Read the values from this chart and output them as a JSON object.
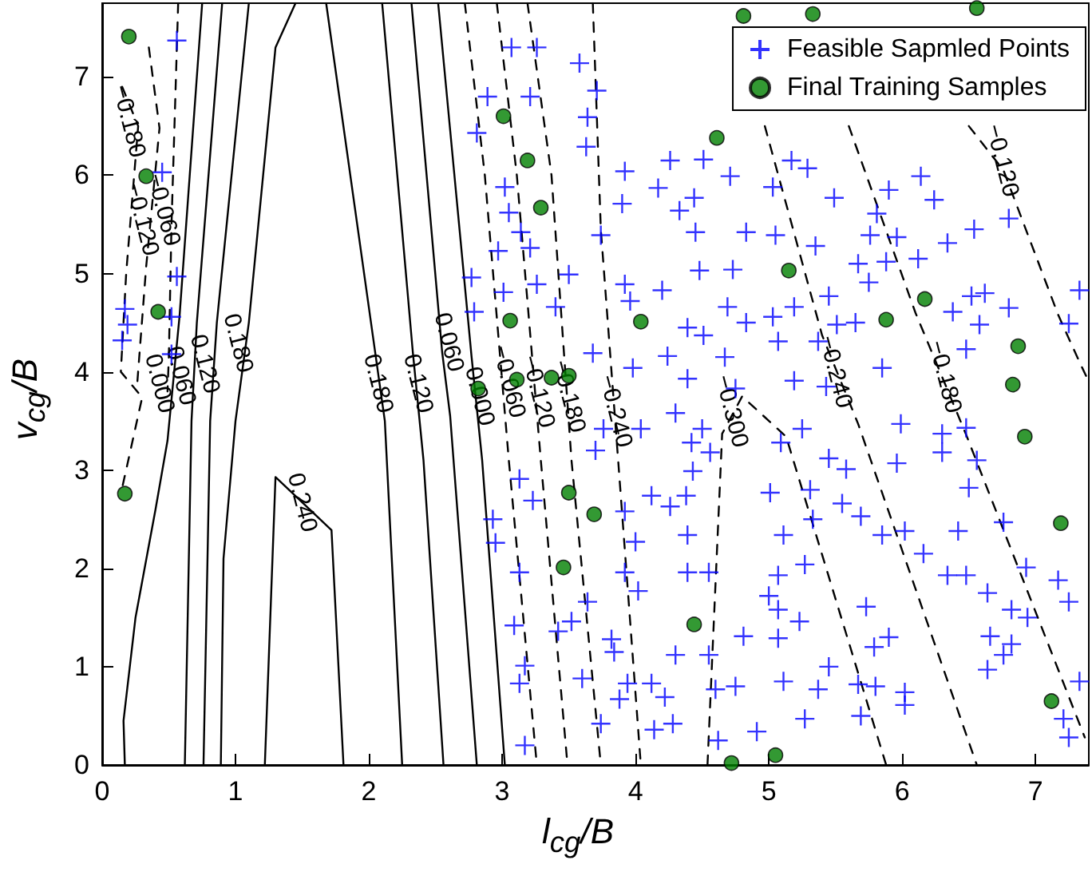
{
  "chart_data": {
    "type": "scatter",
    "xlabel": "l$_{cg}$/B",
    "ylabel": "v$_{cg}$/B",
    "xlim": [
      0,
      7.4
    ],
    "ylim": [
      0,
      7.75
    ],
    "xticks": [
      0,
      1,
      2,
      3,
      4,
      5,
      6,
      7
    ],
    "yticks": [
      0,
      1,
      2,
      3,
      4,
      5,
      6,
      7
    ],
    "grid": false,
    "legend": "top right",
    "series": [
      {
        "type": "line",
        "color": "#000000",
        "line_style": "solid",
        "marker": "none",
        "x": [
          0.17,
          0.16,
          0.25,
          0.4,
          0.49,
          0.58,
          0.75
        ],
        "values": [
          0,
          0.45,
          1.5,
          2.6,
          3.3,
          4.56,
          7.75
        ]
      },
      {
        "type": "line",
        "color": "#000000",
        "line_style": "solid",
        "marker": "none",
        "x": [
          0.62,
          0.67,
          0.71,
          0.9
        ],
        "values": [
          0,
          3.5,
          4.5,
          7.75
        ]
      },
      {
        "type": "line",
        "color": "#000000",
        "line_style": "solid",
        "marker": "none",
        "x": [
          0.76,
          0.81,
          0.86,
          1.1
        ],
        "values": [
          0,
          3.5,
          4.5,
          7.75
        ]
      },
      {
        "type": "line",
        "color": "#000000",
        "line_style": "solid",
        "marker": "none",
        "x": [
          0.89,
          0.91,
          1.0,
          1.1,
          1.3,
          1.45
        ],
        "values": [
          0,
          2.1,
          3.5,
          4.5,
          7.3,
          7.75
        ]
      },
      {
        "type": "line",
        "color": "#000000",
        "line_style": "solid",
        "marker": "none",
        "x": [
          1.22,
          1.3,
          1.72,
          1.81
        ],
        "values": [
          0,
          2.93,
          2.39,
          0
        ]
      },
      {
        "type": "line",
        "color": "#000000",
        "line_style": "solid",
        "marker": "none",
        "x": [
          1.68,
          2.01,
          2.12,
          2.25
        ],
        "values": [
          7.75,
          4.56,
          3.5,
          0
        ]
      },
      {
        "type": "line",
        "color": "#000000",
        "line_style": "solid",
        "marker": "none",
        "x": [
          2.1,
          2.33,
          2.41,
          2.56
        ],
        "values": [
          7.75,
          4.2,
          3.1,
          0
        ]
      },
      {
        "type": "line",
        "color": "#000000",
        "line_style": "solid",
        "marker": "none",
        "x": [
          2.32,
          2.55,
          2.61,
          2.81
        ],
        "values": [
          7.75,
          4.2,
          3.55,
          0
        ]
      },
      {
        "type": "line",
        "color": "#000000",
        "line_style": "solid",
        "marker": "none",
        "x": [
          2.52,
          2.77,
          2.85,
          3.02
        ],
        "values": [
          7.75,
          4.16,
          3.1,
          0
        ]
      },
      {
        "type": "line",
        "color": "#000000",
        "line_style": "dashed",
        "marker": "none",
        "x": [
          0.57,
          0.52,
          0.5,
          0.49
        ],
        "values": [
          7.75,
          5.5,
          4.15,
          3.8
        ]
      },
      {
        "type": "line",
        "color": "#000000",
        "line_style": "dashed",
        "marker": "none",
        "x": [
          0.35,
          0.43,
          0.33,
          0.26
        ],
        "values": [
          7.3,
          6.48,
          5.07,
          3.83
        ]
      },
      {
        "type": "line",
        "color": "#000000",
        "line_style": "dashed",
        "marker": "none",
        "x": [
          0.15,
          0.27,
          0.18,
          0.14,
          0.3,
          0.15
        ],
        "values": [
          6.9,
          6.5,
          5.0,
          4.0,
          3.74,
          2.82
        ]
      },
      {
        "type": "line",
        "color": "#000000",
        "line_style": "dashed",
        "marker": "none",
        "x": [
          2.72,
          2.87,
          3.05,
          3.26
        ],
        "values": [
          7.75,
          6.0,
          3.1,
          0
        ]
      },
      {
        "type": "line",
        "color": "#000000",
        "line_style": "dashed",
        "marker": "none",
        "x": [
          2.96,
          3.11,
          3.29,
          3.49
        ],
        "values": [
          7.75,
          6.0,
          3.1,
          0
        ]
      },
      {
        "type": "line",
        "color": "#000000",
        "line_style": "dashed",
        "marker": "none",
        "x": [
          3.19,
          3.37,
          3.52,
          3.74
        ],
        "values": [
          7.75,
          6.0,
          3.1,
          0
        ]
      },
      {
        "type": "line",
        "color": "#000000",
        "line_style": "dashed",
        "marker": "none",
        "x": [
          3.68,
          3.74,
          3.87,
          4.04
        ],
        "values": [
          7.75,
          5.45,
          3.1,
          0
        ]
      },
      {
        "type": "line",
        "color": "#000000",
        "line_style": "dashed",
        "marker": "none",
        "x": [
          4.54,
          4.65,
          4.8,
          5.13,
          5.88
        ],
        "values": [
          0,
          3.37,
          3.75,
          3.34,
          0
        ]
      },
      {
        "type": "line",
        "color": "#000000",
        "line_style": "dashed",
        "marker": "none",
        "x": [
          4.97,
          5.4,
          5.67,
          6.56
        ],
        "values": [
          6.5,
          4.37,
          3.47,
          0
        ]
      },
      {
        "type": "line",
        "color": "#000000",
        "line_style": "dashed",
        "marker": "none",
        "x": [
          5.6,
          6.1,
          6.48,
          7.37
        ],
        "values": [
          6.5,
          4.6,
          3.36,
          0.28
        ]
      },
      {
        "type": "line",
        "color": "#000000",
        "line_style": "dashed",
        "marker": "none",
        "x": [
          6.5,
          6.76,
          7.17,
          7.33,
          7.4
        ],
        "values": [
          6.5,
          6.05,
          4.58,
          4.1,
          3.9
        ]
      },
      {
        "name": "Feasible Sapmled Points",
        "color": "#0000ff",
        "marker": "cross",
        "x": [
          0.56,
          0.45,
          0.56,
          0.17,
          0.19,
          0.15,
          0.52,
          0.52,
          3.07,
          3.26,
          3.58,
          2.89,
          3.21,
          3.71,
          3.64,
          2.81,
          3.63,
          4.26,
          4.51,
          3.92,
          3.02,
          4.17,
          4.71,
          4.44,
          3.9,
          3.05,
          4.33,
          3.14,
          3.74,
          4.45,
          4.83,
          2.97,
          3.21,
          2.77,
          3.5,
          4.48,
          4.73,
          3.01,
          3.26,
          3.92,
          4.2,
          2.79,
          3.4,
          3.96,
          4.69,
          4.39,
          4.83,
          3.68,
          4.24,
          4.51,
          4.67,
          3.98,
          4.39,
          4.75,
          5.05,
          5.17,
          5.29,
          5.03,
          5.49,
          5.35,
          5.9,
          6.14,
          6.24,
          5.81,
          6.54,
          6.34,
          5.76,
          5.96,
          5.67,
          5.88,
          6.12,
          5.75,
          5.45,
          5.19,
          5.03,
          6.52,
          6.62,
          6.38,
          6.8,
          6.58,
          6.48,
          5.65,
          5.51,
          5.37,
          5.07,
          7.33,
          7.25,
          6.8,
          5.85,
          5.19,
          5.43,
          3.13,
          3.23,
          2.93,
          2.95,
          3.13,
          3.09,
          3.42,
          3.52,
          3.64,
          3.17,
          3.13,
          3.6,
          3.82,
          3.84,
          3.94,
          3.88,
          3.74,
          3.17,
          3.92,
          4.0,
          3.92,
          4.02,
          4.12,
          4.26,
          4.38,
          4.43,
          4.39,
          4.39,
          4.55,
          4.55,
          4.3,
          4.6,
          4.75,
          4.12,
          4.22,
          4.28,
          4.14,
          4.62,
          4.81,
          4.91,
          4.5,
          4.42,
          4.56,
          4.3,
          3.7,
          3.76,
          4.04,
          5.25,
          5.09,
          5.45,
          5.58,
          5.01,
          5.31,
          5.55,
          5.69,
          5.33,
          5.11,
          5.27,
          5.07,
          5.0,
          5.07,
          5.23,
          5.07,
          5.45,
          5.11,
          5.37,
          5.27,
          5.67,
          5.69,
          5.8,
          6.02,
          6.02,
          5.79,
          5.9,
          5.73,
          5.85,
          6.02,
          6.16,
          5.99,
          5.96,
          6.3,
          6.3,
          6.48,
          6.56,
          6.5,
          6.76,
          6.42,
          6.34,
          6.48,
          6.64,
          6.82,
          6.94,
          6.93,
          6.66,
          6.82,
          6.76,
          6.64,
          7.17,
          7.25,
          7.33,
          7.21,
          7.25
        ],
        "values": [
          7.37,
          6.03,
          4.97,
          4.64,
          4.48,
          4.32,
          4.56,
          4.18,
          7.3,
          7.3,
          7.14,
          6.8,
          6.8,
          6.86,
          6.59,
          6.43,
          6.29,
          6.15,
          6.16,
          6.04,
          5.88,
          5.87,
          5.99,
          5.77,
          5.71,
          5.62,
          5.64,
          5.42,
          5.39,
          5.42,
          5.42,
          5.23,
          5.26,
          4.96,
          4.99,
          5.03,
          5.04,
          4.81,
          4.89,
          4.89,
          4.83,
          4.61,
          4.66,
          4.72,
          4.66,
          4.45,
          4.5,
          4.19,
          4.16,
          4.37,
          4.15,
          4.04,
          3.93,
          3.83,
          5.39,
          6.15,
          6.07,
          5.88,
          5.77,
          5.28,
          5.85,
          5.99,
          5.75,
          5.61,
          5.45,
          5.31,
          5.39,
          5.37,
          5.1,
          5.12,
          5.15,
          4.91,
          4.77,
          4.66,
          4.56,
          4.77,
          4.8,
          4.61,
          4.65,
          4.48,
          4.23,
          4.5,
          4.48,
          4.31,
          4.31,
          4.83,
          4.49,
          5.56,
          4.04,
          3.91,
          3.85,
          2.91,
          2.69,
          2.5,
          2.26,
          1.96,
          1.42,
          1.36,
          1.46,
          1.66,
          1.01,
          0.83,
          0.88,
          1.28,
          1.15,
          0.83,
          0.67,
          0.42,
          0.2,
          2.58,
          2.27,
          1.96,
          1.77,
          2.74,
          2.63,
          2.74,
          2.99,
          2.34,
          1.96,
          1.96,
          1.12,
          1.12,
          0.77,
          0.8,
          0.83,
          0.69,
          0.42,
          0.36,
          0.25,
          1.31,
          0.34,
          3.42,
          3.28,
          3.18,
          3.58,
          3.2,
          3.42,
          3.42,
          3.42,
          3.28,
          3.12,
          3.01,
          2.77,
          2.8,
          2.66,
          2.53,
          2.5,
          2.34,
          2.04,
          1.93,
          1.72,
          1.58,
          1.46,
          1.29,
          1.0,
          0.85,
          0.77,
          0.47,
          0.82,
          0.5,
          0.8,
          0.74,
          0.61,
          1.2,
          1.3,
          1.61,
          2.34,
          2.38,
          2.15,
          3.47,
          3.07,
          3.37,
          3.18,
          3.43,
          3.1,
          2.82,
          2.47,
          2.38,
          1.93,
          1.93,
          1.75,
          1.58,
          1.5,
          2.01,
          1.31,
          1.23,
          1.12,
          0.97,
          1.88,
          1.66,
          0.85,
          0.47,
          0.28
        ]
      },
      {
        "name": "Final Training Samples",
        "color": "#007f00",
        "marker": "circle",
        "x": [
          0.2,
          0.33,
          0.42,
          0.17,
          3.01,
          3.19,
          3.29,
          3.06,
          4.04,
          4.61,
          4.81,
          3.37,
          3.5,
          3.11,
          2.82,
          5.33,
          6.56,
          5.15,
          6.17,
          5.88,
          6.87,
          6.83,
          3.5,
          3.69,
          3.46,
          4.44,
          4.72,
          5.05,
          6.92,
          7.19,
          7.12
        ],
        "values": [
          7.41,
          5.99,
          4.61,
          2.76,
          6.6,
          6.15,
          5.67,
          4.52,
          4.51,
          6.38,
          7.62,
          3.94,
          3.96,
          3.92,
          3.83,
          7.64,
          7.7,
          5.03,
          4.74,
          4.53,
          4.26,
          3.87,
          2.77,
          2.55,
          2.01,
          1.43,
          0.02,
          0.1,
          3.34,
          2.46,
          0.65
        ]
      }
    ],
    "annotations": [
      {
        "text": "0.000",
        "x": 0.43,
        "y": 3.88
      },
      {
        "text": "0.060",
        "x": 0.59,
        "y": 3.96
      },
      {
        "text": "0.120",
        "x": 0.77,
        "y": 4.08
      },
      {
        "text": "0.180",
        "x": 1.02,
        "y": 4.29
      },
      {
        "text": "0.240",
        "x": 1.5,
        "y": 2.67
      },
      {
        "text": "0.180",
        "x": 2.07,
        "y": 3.88
      },
      {
        "text": "0.120",
        "x": 2.37,
        "y": 3.88
      },
      {
        "text": "0.060",
        "x": 2.6,
        "y": 4.3
      },
      {
        "text": "0.000",
        "x": 2.83,
        "y": 3.75
      },
      {
        "text": "−0.180",
        "x": 0.2,
        "y": 6.55
      },
      {
        "text": "−0.120",
        "x": 0.3,
        "y": 5.55
      },
      {
        "text": "−0.060",
        "x": 0.46,
        "y": 5.65
      },
      {
        "text": "−0.060",
        "x": 3.05,
        "y": 3.9
      },
      {
        "text": "−0.120",
        "x": 3.27,
        "y": 3.8
      },
      {
        "text": "−0.180",
        "x": 3.5,
        "y": 3.75
      },
      {
        "text": "−0.240",
        "x": 3.85,
        "y": 3.6
      },
      {
        "text": "−0.300",
        "x": 4.72,
        "y": 3.6
      },
      {
        "text": "−0.240",
        "x": 5.5,
        "y": 4.0
      },
      {
        "text": "−0.180",
        "x": 6.32,
        "y": 3.95
      },
      {
        "text": "−0.120",
        "x": 6.75,
        "y": 6.15
      }
    ]
  }
}
